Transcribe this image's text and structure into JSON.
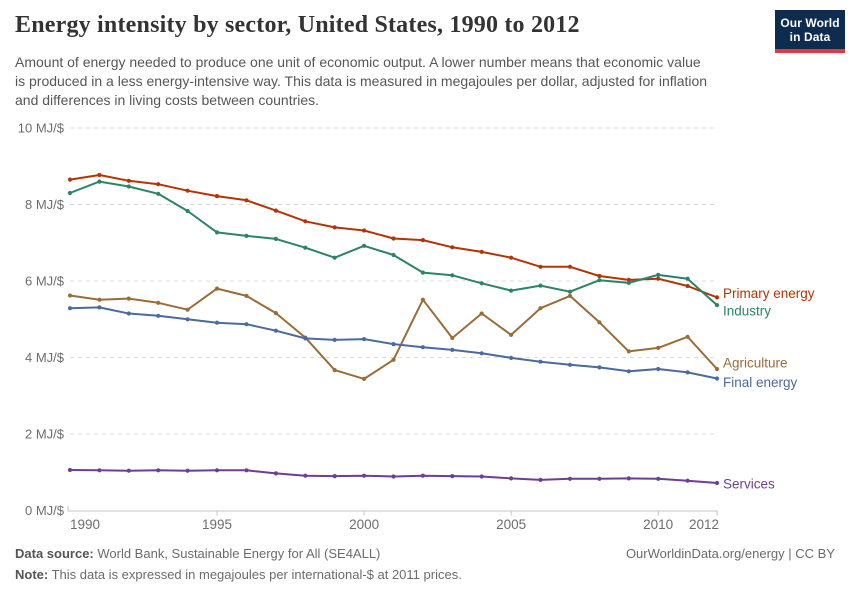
{
  "header": {
    "title": "Energy intensity by sector, United States, 1990 to 2012",
    "subtitle_lines": [
      "Amount of energy needed to produce one unit of economic output. A lower number means that economic value",
      "is produced in a less energy-intensive way. This data is measured in megajoules per dollar, adjusted for inflation",
      "and differences in living costs between countries."
    ],
    "logo": {
      "line1": "Our World",
      "line2": "in Data",
      "bg_color": "#0d2c50",
      "accent_color": "#e0393e"
    }
  },
  "chart_data": {
    "type": "line",
    "title": "Energy intensity by sector, United States, 1990 to 2012",
    "unit_suffix": " MJ/$",
    "xlabel": "",
    "ylabel": "MJ/$",
    "ylim": [
      0,
      10
    ],
    "yticks": [
      0,
      2,
      4,
      6,
      8,
      10
    ],
    "xticks": [
      1990,
      1995,
      2000,
      2005,
      2010,
      2012
    ],
    "x": [
      1990,
      1991,
      1992,
      1993,
      1994,
      1995,
      1996,
      1997,
      1998,
      1999,
      2000,
      2001,
      2002,
      2003,
      2004,
      2005,
      2006,
      2007,
      2008,
      2009,
      2010,
      2011,
      2012
    ],
    "grid": "horizontal-dashed",
    "legend_position": "right-end-labels",
    "series": [
      {
        "name": "Primary energy",
        "color": "#b13507",
        "values": [
          8.65,
          8.77,
          8.62,
          8.53,
          8.36,
          8.22,
          8.11,
          7.84,
          7.56,
          7.4,
          7.32,
          7.11,
          7.07,
          6.88,
          6.76,
          6.61,
          6.37,
          6.37,
          6.13,
          6.03,
          6.06,
          5.87,
          5.57
        ]
      },
      {
        "name": "Industry",
        "color": "#2c8465",
        "values": [
          8.3,
          8.6,
          8.47,
          8.28,
          7.83,
          7.27,
          7.18,
          7.1,
          6.87,
          6.61,
          6.92,
          6.68,
          6.22,
          6.15,
          5.94,
          5.75,
          5.88,
          5.72,
          6.02,
          5.95,
          6.16,
          6.06,
          5.37
        ]
      },
      {
        "name": "Agriculture",
        "color": "#996d39",
        "values": [
          5.62,
          5.51,
          5.54,
          5.43,
          5.25,
          5.8,
          5.61,
          5.16,
          4.52,
          3.67,
          3.44,
          3.94,
          5.51,
          4.51,
          5.15,
          4.59,
          5.29,
          5.61,
          4.92,
          4.16,
          4.25,
          4.54,
          3.7
        ]
      },
      {
        "name": "Final energy",
        "color": "#4c6a9c",
        "values": [
          5.29,
          5.31,
          5.15,
          5.09,
          5.0,
          4.91,
          4.87,
          4.7,
          4.5,
          4.46,
          4.48,
          4.35,
          4.27,
          4.2,
          4.11,
          3.99,
          3.89,
          3.81,
          3.74,
          3.64,
          3.7,
          3.61,
          3.45
        ]
      },
      {
        "name": "Services",
        "color": "#6d3e91",
        "values": [
          1.06,
          1.05,
          1.04,
          1.05,
          1.04,
          1.05,
          1.05,
          0.97,
          0.91,
          0.9,
          0.91,
          0.89,
          0.91,
          0.9,
          0.89,
          0.84,
          0.8,
          0.83,
          0.83,
          0.84,
          0.83,
          0.78,
          0.72
        ]
      }
    ]
  },
  "footer": {
    "source_label": "Data source:",
    "source_text": " World Bank, Sustainable Energy for All (SE4ALL)",
    "link_text": "OurWorldinData.org/energy | CC BY",
    "note_label": "Note:",
    "note_text": " This data is expressed in megajoules per international-$ at 2011 prices."
  }
}
